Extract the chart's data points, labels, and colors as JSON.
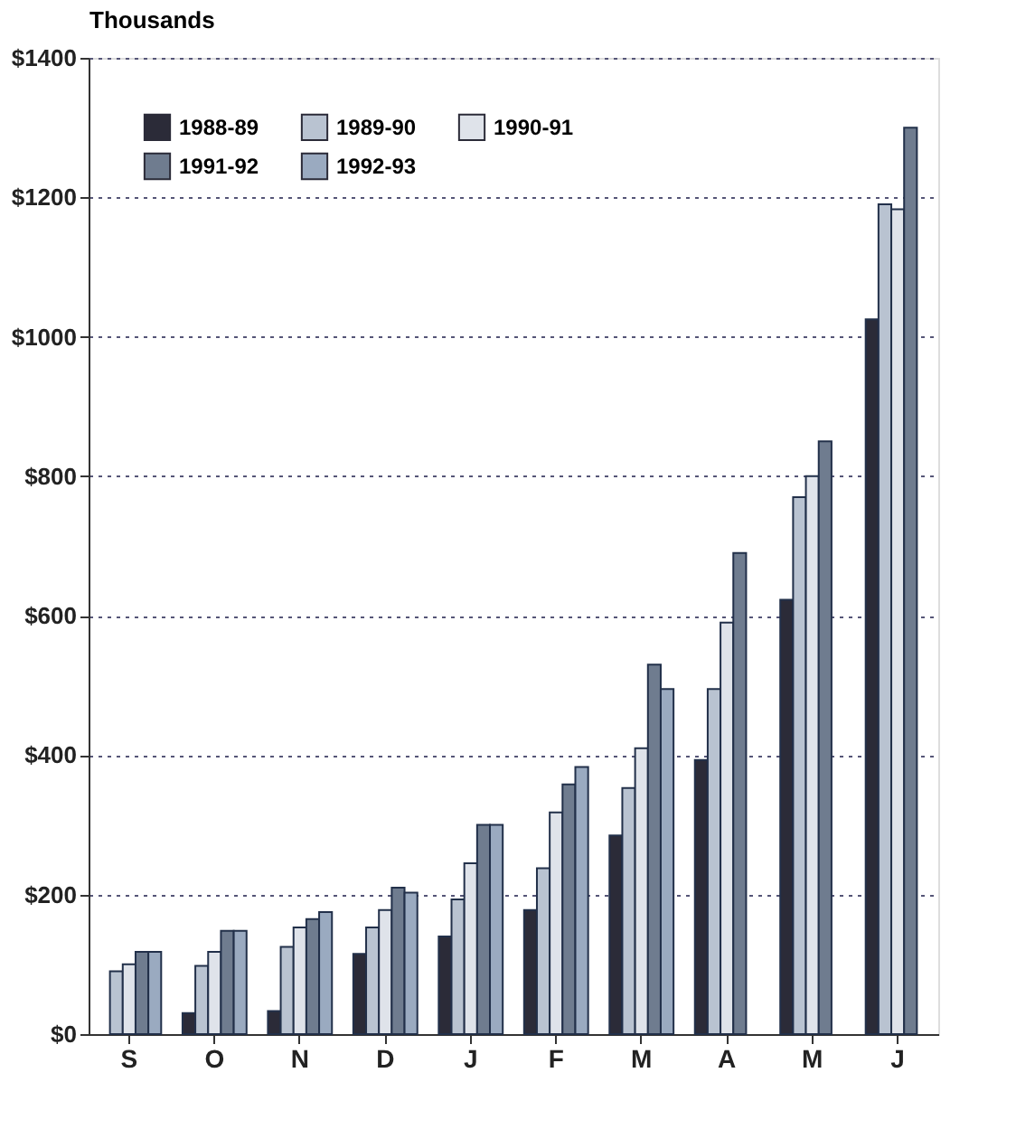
{
  "chart_data": {
    "type": "bar",
    "ylabel": "Thousands",
    "categories": [
      "S",
      "O",
      "N",
      "D",
      "J",
      "F",
      "M",
      "A",
      "M",
      "J"
    ],
    "series": [
      {
        "name": "1988-89",
        "color": "#2b2b38",
        "values": [
          null,
          30,
          33,
          115,
          140,
          178,
          285,
          393,
          623,
          1025
        ]
      },
      {
        "name": "1989-90",
        "color": "#b9c3d1",
        "values": [
          90,
          98,
          125,
          153,
          193,
          238,
          353,
          495,
          770,
          1190
        ]
      },
      {
        "name": "1990-91",
        "color": "#dfe3ea",
        "values": [
          100,
          118,
          153,
          178,
          245,
          318,
          410,
          590,
          800,
          1183
        ]
      },
      {
        "name": "1991-92",
        "color": "#6f7c8f",
        "values": [
          118,
          148,
          165,
          210,
          300,
          358,
          530,
          690,
          850,
          1300
        ]
      },
      {
        "name": "1992-93",
        "color": "#9aaac0",
        "values": [
          118,
          148,
          175,
          203,
          300,
          383,
          495,
          null,
          null,
          null
        ]
      }
    ],
    "ylim": [
      0,
      1400
    ],
    "yticks": [
      {
        "value": 0,
        "label": "$0"
      },
      {
        "value": 200,
        "label": "$200"
      },
      {
        "value": 400,
        "label": "$400"
      },
      {
        "value": 600,
        "label": "$600"
      },
      {
        "value": 800,
        "label": "$800"
      },
      {
        "value": 1000,
        "label": "$1000"
      },
      {
        "value": 1200,
        "label": "$1200"
      },
      {
        "value": 1400,
        "label": "$1400"
      }
    ],
    "grid": "y",
    "legend": "top left"
  }
}
